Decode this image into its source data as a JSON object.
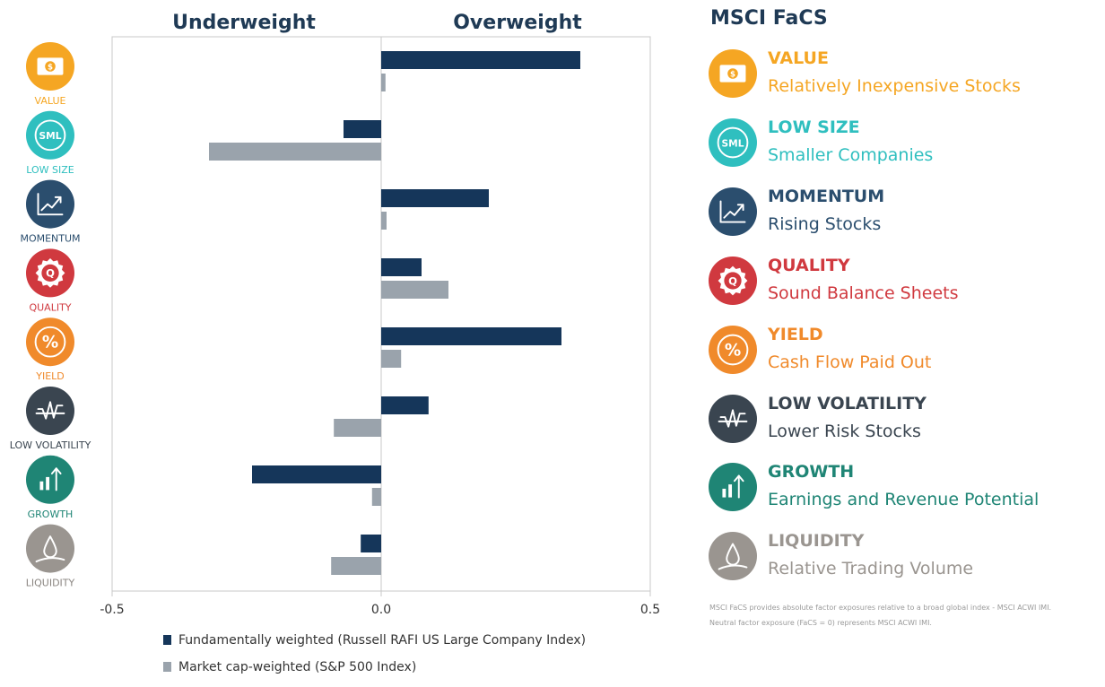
{
  "chart_data": {
    "type": "bar",
    "orientation": "horizontal",
    "header_left": "Underweight",
    "header_right": "Overweight",
    "categories": [
      "VALUE",
      "LOW SIZE",
      "MOMENTUM",
      "QUALITY",
      "YIELD",
      "LOW VOLATILITY",
      "GROWTH",
      "LIQUIDITY"
    ],
    "series": [
      {
        "name": "Fundamentally weighted (Russell RAFI US Large Company Index)",
        "color": "#15365a",
        "values": [
          0.37,
          -0.07,
          0.2,
          0.075,
          0.335,
          0.088,
          -0.24,
          -0.038
        ]
      },
      {
        "name": "Market cap-weighted (S&P 500 Index)",
        "color": "#9aa3ac",
        "values": [
          0.008,
          -0.32,
          0.01,
          0.125,
          0.037,
          -0.088,
          -0.017,
          -0.093
        ]
      }
    ],
    "xlim": [
      -0.5,
      0.5
    ],
    "xticks": [
      -0.5,
      0.0,
      0.5
    ],
    "xtick_labels": [
      "-0.5",
      "0.0",
      "0.5"
    ],
    "legend_position": "bottom"
  },
  "factors": [
    {
      "short": "VALUE",
      "name": "VALUE",
      "desc": "Relatively Inexpensive Stocks",
      "color": "#f5a623",
      "icon": "dollar-bill-icon"
    },
    {
      "short": "LOW SIZE",
      "name": "LOW SIZE",
      "desc": "Smaller Companies",
      "color": "#2fbfbf",
      "icon": "sml-icon"
    },
    {
      "short": "MOMENTUM",
      "name": "MOMENTUM",
      "desc": "Rising Stocks",
      "color": "#2b4e6e",
      "icon": "rising-chart-icon"
    },
    {
      "short": "QUALITY",
      "name": "QUALITY",
      "desc": "Sound Balance Sheets",
      "color": "#d0393f",
      "icon": "quality-seal-icon"
    },
    {
      "short": "YIELD",
      "name": "YIELD",
      "desc": "Cash Flow Paid Out",
      "color": "#f08a2b",
      "icon": "percent-icon"
    },
    {
      "short": "LOW VOLATILITY",
      "name": "LOW VOLATILITY",
      "desc": "Lower Risk Stocks",
      "color": "#3a4550",
      "icon": "volatility-wave-icon"
    },
    {
      "short": "GROWTH",
      "name": "GROWTH",
      "desc": "Earnings and Revenue Potential",
      "color": "#1f8575",
      "icon": "growth-bars-icon"
    },
    {
      "short": "LIQUIDITY",
      "name": "LIQUIDITY",
      "desc": "Relative Trading Volume",
      "color": "#9a9590",
      "icon": "droplet-icon"
    }
  ],
  "label_colors": [
    "#f5a623",
    "#2fbfbf",
    "#2b4e6e",
    "#d0393f",
    "#f08a2b",
    "#3a4550",
    "#1f8575",
    "#8a8580"
  ],
  "panel": {
    "title": "MSCI FaCS",
    "footnote_1": "MSCI FaCS provides absolute factor exposures relative to a broad global index - MSCI ACWI IMI.",
    "footnote_2": "Neutral factor exposure (FaCS = 0) represents MSCI ACWI IMI."
  }
}
